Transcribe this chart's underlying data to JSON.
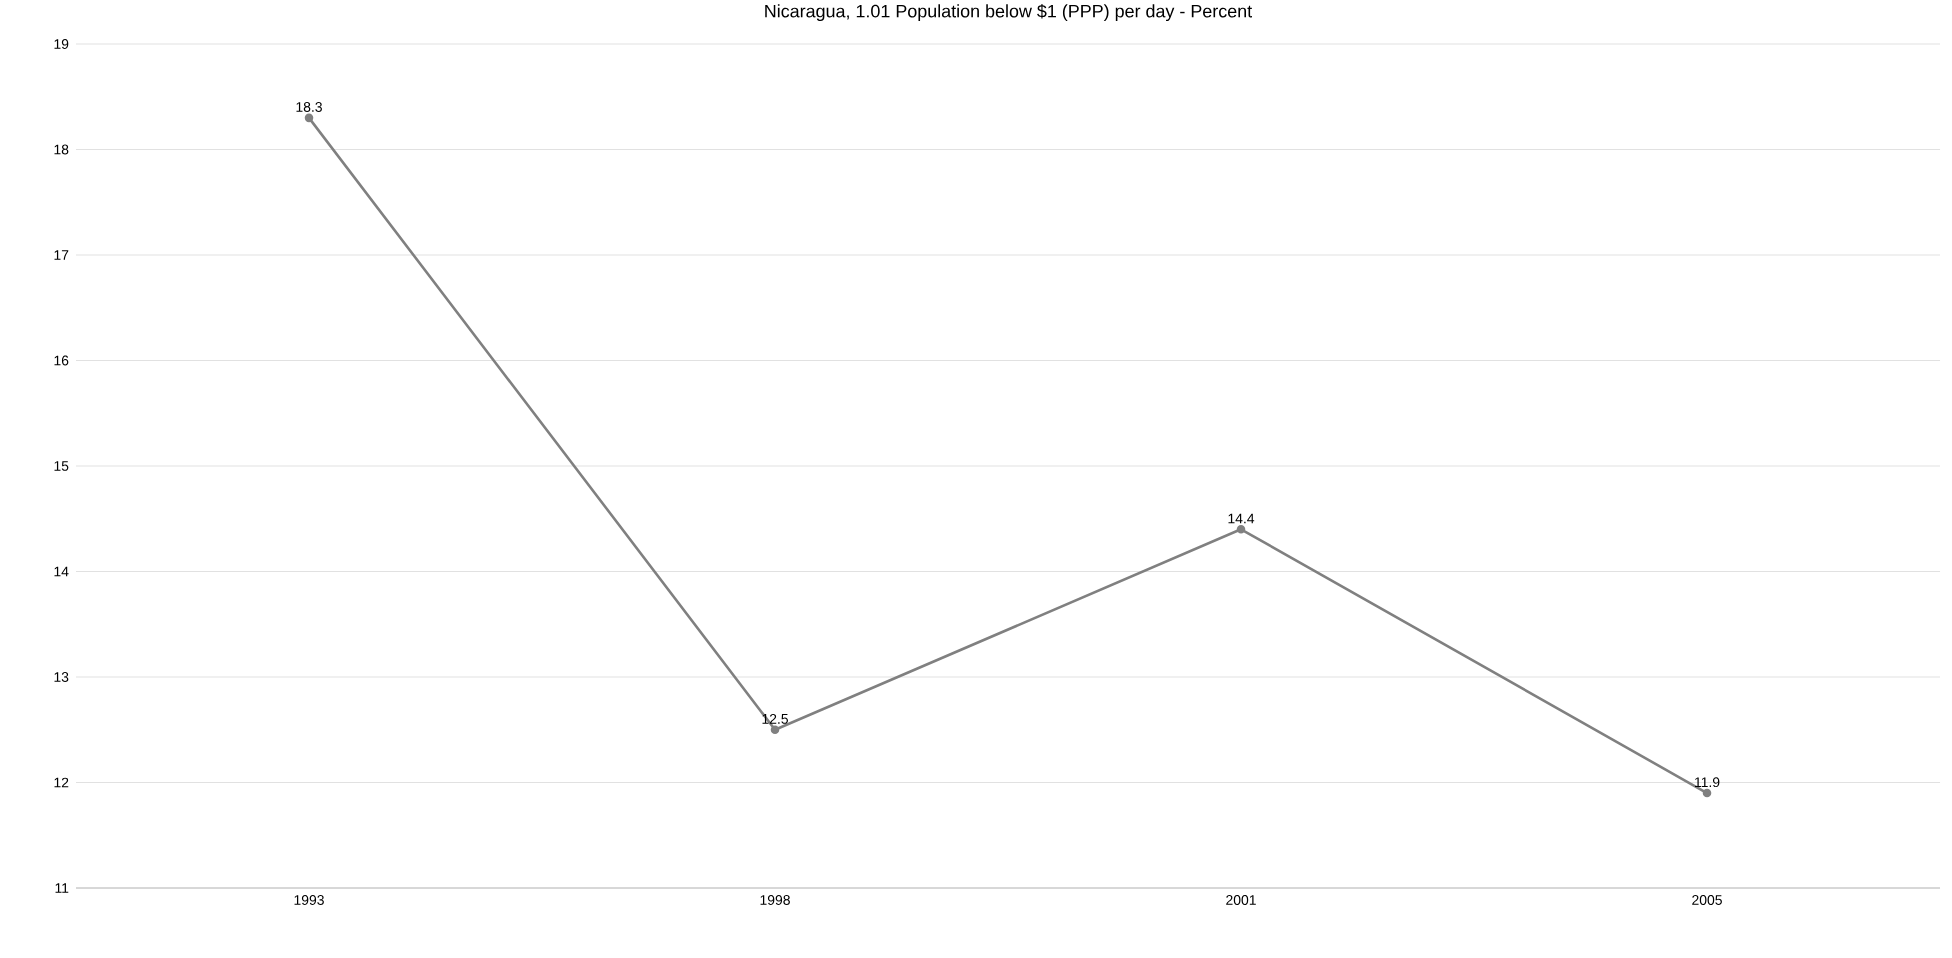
{
  "chart_data": {
    "type": "line",
    "title": "Nicaragua, 1.01 Population below $1 (PPP) per day - Percent",
    "categories": [
      "1993",
      "1998",
      "2001",
      "2005"
    ],
    "values": [
      18.3,
      12.5,
      14.4,
      11.9
    ],
    "color": "#808080",
    "ylim": [
      11,
      19
    ],
    "yticks": [
      11,
      12,
      13,
      14,
      15,
      16,
      17,
      18,
      19
    ],
    "grid": "y",
    "marker": "circle",
    "line_style": "solid",
    "data_labels": true
  }
}
